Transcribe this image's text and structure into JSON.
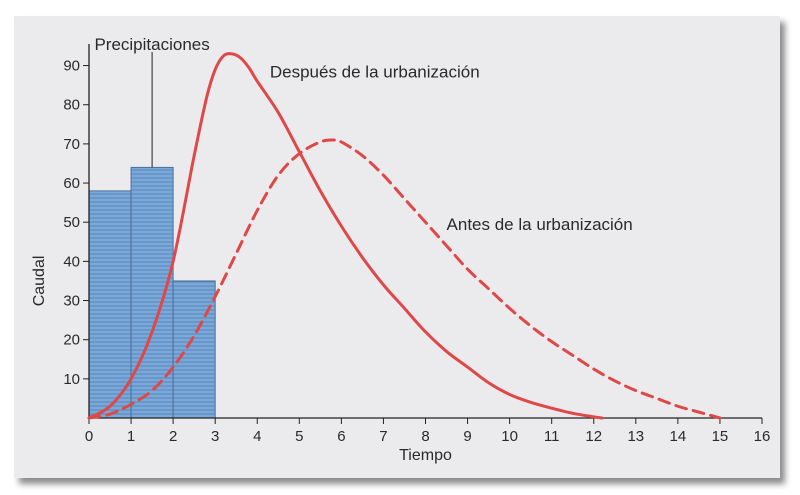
{
  "chart_data": {
    "type": "line",
    "title": "",
    "xlabel": "Tiempo",
    "ylabel": "Caudal",
    "xlim": [
      0,
      16
    ],
    "ylim": [
      0,
      95
    ],
    "x_ticks": [
      0,
      1,
      2,
      3,
      4,
      5,
      6,
      7,
      8,
      9,
      10,
      11,
      12,
      13,
      14,
      15,
      16
    ],
    "y_ticks": [
      10,
      20,
      30,
      40,
      50,
      60,
      70,
      80,
      90
    ],
    "grid": false,
    "bars": {
      "name": "Precipitaciones",
      "color": "#7aa8d8",
      "items": [
        {
          "x0": 0,
          "x1": 1,
          "value": 58
        },
        {
          "x0": 1,
          "x1": 2,
          "value": 64
        },
        {
          "x0": 2,
          "x1": 3,
          "value": 35
        }
      ],
      "label_anchor_x": 1.5
    },
    "series": [
      {
        "name": "Después de la urbanización",
        "style": "solid",
        "color": "#e04848",
        "x": [
          0,
          0.5,
          1,
          1.5,
          2,
          2.5,
          2.8,
          3,
          3.2,
          3.4,
          3.6,
          3.8,
          4,
          4.5,
          5,
          5.5,
          6,
          6.5,
          7,
          7.5,
          8,
          8.5,
          9,
          9.5,
          10,
          10.5,
          11,
          11.5,
          12,
          12.2
        ],
        "y": [
          0,
          3,
          10,
          22,
          40,
          67,
          82,
          89,
          92.5,
          93,
          92,
          89.5,
          86,
          78,
          68,
          58,
          49,
          41,
          34,
          28,
          22,
          17,
          13,
          9,
          6,
          4,
          2.5,
          1.2,
          0.3,
          0
        ]
      },
      {
        "name": "Antes de la urbanización",
        "style": "dashed",
        "color": "#e04848",
        "x": [
          0,
          0.5,
          1,
          1.5,
          2,
          2.5,
          3,
          3.5,
          4,
          4.5,
          5,
          5.5,
          5.8,
          6,
          6.5,
          7,
          7.5,
          8,
          8.5,
          9,
          9.5,
          10,
          10.5,
          11,
          11.5,
          12,
          12.5,
          13,
          13.5,
          14,
          14.5,
          15
        ],
        "y": [
          0,
          1,
          3.5,
          7,
          13,
          21,
          31,
          42,
          53,
          62,
          67.5,
          70.5,
          71,
          70.5,
          67,
          62,
          56,
          50,
          44,
          38,
          33,
          28,
          23.5,
          19.5,
          16,
          12.5,
          9.5,
          7,
          5,
          3,
          1.5,
          0
        ]
      }
    ],
    "annotations": [
      {
        "text": "Precipitaciones",
        "at": [
          1.5,
          94
        ]
      },
      {
        "text": "Después de la urbanización",
        "at": [
          4.3,
          87
        ]
      },
      {
        "text": "Antes de la urbanización",
        "at": [
          8.5,
          48
        ]
      }
    ]
  }
}
